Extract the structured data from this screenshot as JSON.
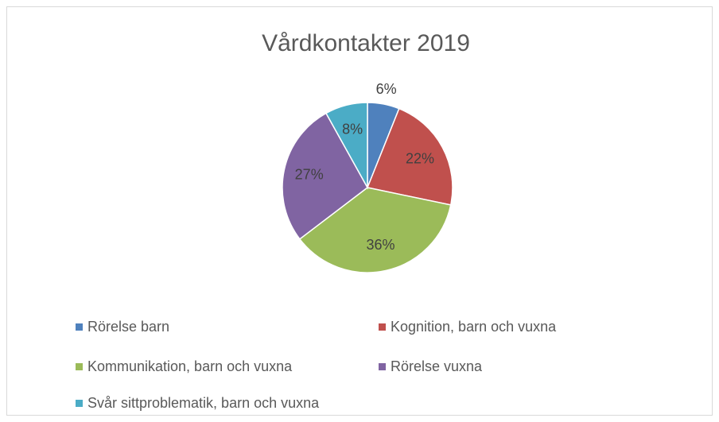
{
  "chart_data": {
    "type": "pie",
    "title": "Vårdkontakter 2019",
    "categories": [
      "Rörelse barn",
      "Kognition, barn och vuxna",
      "Kommunikation, barn och vuxna",
      "Rörelse vuxna",
      "Svår sittproblematik, barn och vuxna"
    ],
    "values": [
      6,
      22,
      36,
      27,
      8
    ],
    "value_labels": [
      "6%",
      "22%",
      "36%",
      "27%",
      "8%"
    ],
    "colors": [
      "#4f81bd",
      "#c0504d",
      "#9bbb59",
      "#8064a2",
      "#4bacc6"
    ],
    "legend": "bottom"
  }
}
